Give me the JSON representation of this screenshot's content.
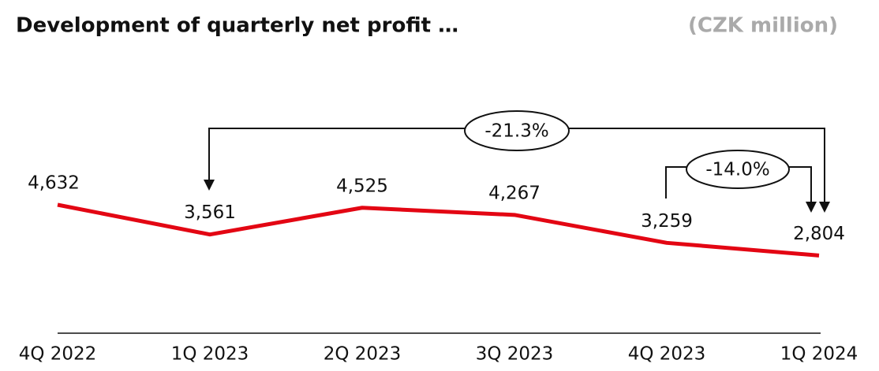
{
  "chart_data": {
    "type": "line",
    "title": "Development of quarterly net profit …",
    "subtitle": "(CZK million)",
    "categories": [
      "4Q 2022",
      "1Q 2023",
      "2Q 2023",
      "3Q 2023",
      "4Q 2023",
      "1Q 2024"
    ],
    "values": [
      4632,
      3561,
      4525,
      4267,
      3259,
      2804
    ],
    "value_labels": [
      "4,632",
      "3,561",
      "4,525",
      "4,267",
      "3,259",
      "2,804"
    ],
    "color": "#e30613",
    "annotations": [
      "-21.3%",
      "-14.0%"
    ]
  }
}
